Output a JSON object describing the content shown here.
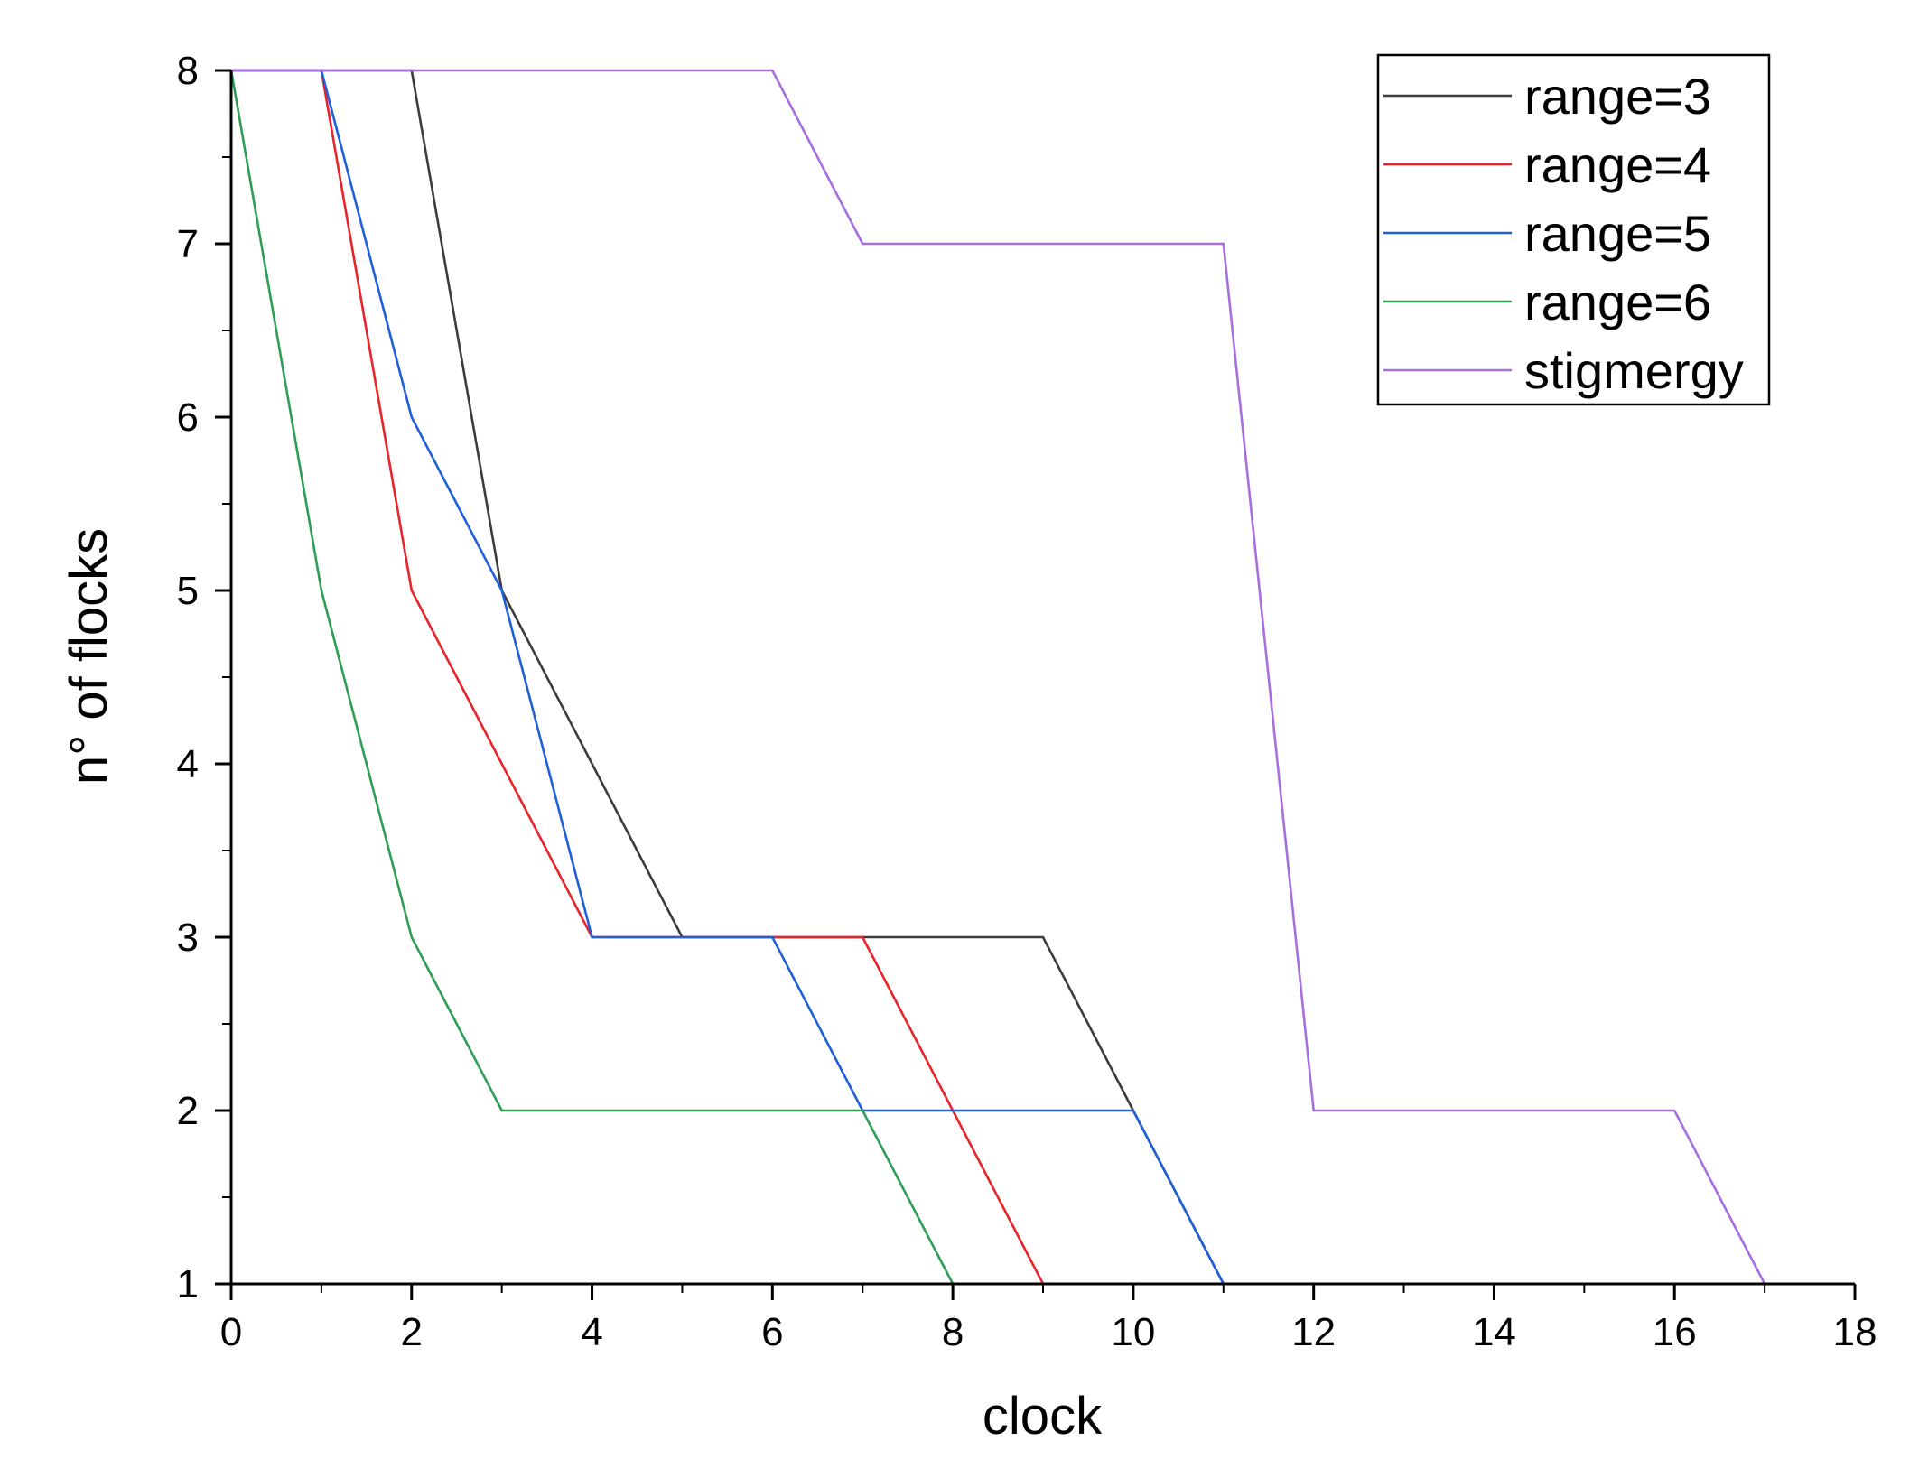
{
  "chart_data": {
    "type": "line",
    "title": "",
    "xlabel": "clock",
    "ylabel": "n° of flocks",
    "xlim": [
      0,
      18
    ],
    "ylim": [
      1,
      8
    ],
    "x_ticks": [
      0,
      2,
      4,
      6,
      8,
      10,
      12,
      14,
      16,
      18
    ],
    "y_ticks": [
      1,
      2,
      3,
      4,
      5,
      6,
      7,
      8
    ],
    "grid": false,
    "legend_position": "top-right",
    "series": [
      {
        "name": "range=3",
        "color": "#3c3c3c",
        "x": [
          0,
          1,
          2,
          3,
          4,
          5,
          6,
          7,
          8,
          9,
          10,
          11,
          12,
          13,
          14,
          15,
          16,
          17,
          18
        ],
        "y": [
          8,
          8,
          8,
          5,
          4,
          3,
          3,
          3,
          3,
          3,
          2,
          1,
          1,
          1,
          1,
          1,
          1,
          1,
          1
        ]
      },
      {
        "name": "range=4",
        "color": "#e8232a",
        "x": [
          0,
          1,
          2,
          3,
          4,
          5,
          6,
          7,
          8,
          9,
          10,
          11,
          12,
          13,
          14,
          15,
          16,
          17,
          18
        ],
        "y": [
          8,
          8,
          5,
          4,
          3,
          3,
          3,
          3,
          2,
          1,
          1,
          1,
          1,
          1,
          1,
          1,
          1,
          1,
          1
        ]
      },
      {
        "name": "range=5",
        "color": "#1f5fd8",
        "x": [
          0,
          1,
          2,
          3,
          4,
          5,
          6,
          7,
          8,
          9,
          10,
          11,
          12,
          13,
          14,
          15,
          16,
          17,
          18
        ],
        "y": [
          8,
          8,
          6,
          5,
          3,
          3,
          3,
          2,
          2,
          2,
          2,
          1,
          1,
          1,
          1,
          1,
          1,
          1,
          1
        ]
      },
      {
        "name": "range=6",
        "color": "#2e9e55",
        "x": [
          0,
          1,
          2,
          3,
          4,
          5,
          6,
          7,
          8,
          9,
          10,
          11,
          12,
          13,
          14,
          15,
          16,
          17,
          18
        ],
        "y": [
          8,
          5,
          3,
          2,
          2,
          2,
          2,
          2,
          1,
          1,
          1,
          1,
          1,
          1,
          1,
          1,
          1,
          1,
          1
        ]
      },
      {
        "name": "stigmergy",
        "color": "#a86ee0",
        "x": [
          0,
          1,
          2,
          3,
          4,
          5,
          6,
          7,
          8,
          9,
          10,
          11,
          12,
          13,
          14,
          15,
          16,
          17,
          18
        ],
        "y": [
          8,
          8,
          8,
          8,
          8,
          8,
          8,
          7,
          7,
          7,
          7,
          7,
          2,
          2,
          2,
          2,
          2,
          1,
          1
        ]
      }
    ]
  }
}
